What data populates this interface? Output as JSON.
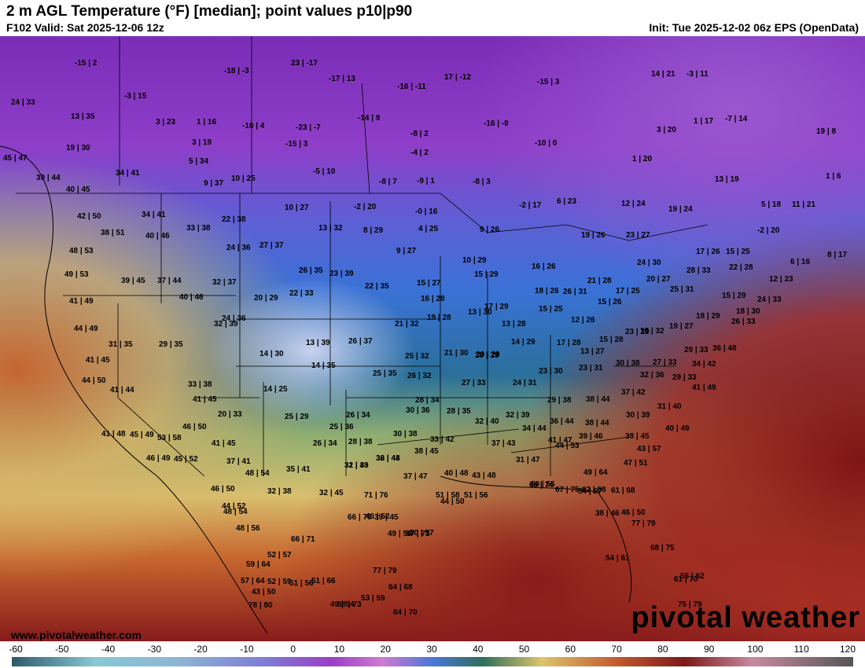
{
  "header": {
    "title": "2 m AGL Temperature (°F) [median]; point values p10|p90",
    "valid": "F102 Valid: Sat 2025-12-06 12z",
    "init": "Init: Tue 2025-12-02 06z EPS (OpenData)"
  },
  "branding": {
    "logo": "pivotal weather",
    "site": "www.pivotalweather.com"
  },
  "colorbar": {
    "ticks": [
      "-60",
      "-50",
      "-40",
      "-30",
      "-20",
      "-10",
      "0",
      "10",
      "20",
      "30",
      "40",
      "50",
      "60",
      "70",
      "80",
      "90",
      "100",
      "110",
      "120"
    ]
  },
  "colors": {
    "frigid": "#8a2fc1",
    "cold": "#3f6fd8",
    "cool": "#2e7d6a",
    "mild": "#d9c46a",
    "warm": "#c9582e",
    "hot": "#8f1f1f"
  },
  "points": [
    "-15 | 2",
    "-18 | -3",
    "23 | -17",
    "-17 | 13",
    "-16 | -11",
    "17 | -12",
    "-15 | 3",
    "14 | 21",
    "-3 | 11",
    "24 | 33",
    "-3 | 15",
    "13 | 35",
    "3 | 23",
    "1 | 16",
    "-10 | 4",
    "-23 | -7",
    "-14 | 9",
    "-8 | 2",
    "-16 | -9",
    "3 | 20",
    "1 | 17",
    "-7 | 14",
    "19 | 8",
    "19 | 30",
    "3 | 19",
    "-15 | 3",
    "-4 | 2",
    "-10 | 0",
    "45 | 47",
    "5 | 34",
    "-5 | 10",
    "1 | 20",
    "34 | 41",
    "39 | 44",
    "9 | 37",
    "10 | 25",
    "-8 | 7",
    "-9 | 1",
    "-8 | 3",
    "13 | 19",
    "1 | 6",
    "40 | 45",
    "6 | 23",
    "12 | 24",
    "19 | 24",
    "5 | 18",
    "11 | 21",
    "42 | 50",
    "34 | 41",
    "10 | 27",
    "-2 | 20",
    "-0 | 16",
    "-2 | 17",
    "22 | 38",
    "33 | 38",
    "13 | 32",
    "8 | 29",
    "4 | 25",
    "9 | 26",
    "19 | 26",
    "23 | 27",
    "-2 | 20",
    "38 | 51",
    "40 | 46",
    "24 | 36",
    "27 | 37",
    "9 | 27",
    "17 | 26",
    "15 | 25",
    "8 | 17",
    "48 | 53",
    "10 | 29",
    "16 | 26",
    "24 | 30",
    "6 | 16",
    "26 | 35",
    "23 | 39",
    "15 | 29",
    "22 | 28",
    "49 | 53",
    "39 | 45",
    "37 | 44",
    "32 | 37",
    "22 | 33",
    "20 | 29",
    "22 | 35",
    "15 | 27",
    "18 | 26",
    "26 | 31",
    "21 | 28",
    "17 | 25",
    "20 | 27",
    "25 | 31",
    "28 | 33",
    "12 | 23",
    "41 | 49",
    "40 | 46",
    "16 | 28",
    "17 | 29",
    "15 | 25",
    "15 | 26",
    "15 | 29",
    "24 | 33",
    "32 | 39",
    "21 | 32",
    "19 | 28",
    "13 | 30",
    "13 | 28",
    "12 | 26",
    "23 | 29",
    "19 | 27",
    "18 | 29",
    "18 | 30",
    "44 | 49",
    "24 | 36",
    "31 | 35",
    "29 | 35",
    "13 | 39",
    "26 | 37",
    "14 | 29",
    "17 | 28",
    "15 | 28",
    "18 | 32",
    "26 | 33",
    "14 | 30",
    "25 | 32",
    "21 | 30",
    "20 | 29",
    "13 | 27",
    "29 | 33",
    "36 | 48",
    "41 | 45",
    "14 | 35",
    "25 | 35",
    "26 | 32",
    "20 | 29",
    "23 | 30",
    "23 | 31",
    "30 | 38",
    "27 | 33",
    "34 | 42",
    "44 | 50",
    "33 | 38",
    "27 | 33",
    "24 | 31",
    "32 | 36",
    "29 | 33",
    "41 | 49",
    "41 | 44",
    "14 | 25",
    "28 | 34",
    "29 | 38",
    "37 | 42",
    "38 | 44",
    "41 | 45",
    "20 | 33",
    "26 | 34",
    "30 | 36",
    "28 | 35",
    "32 | 39",
    "30 | 39",
    "31 | 40",
    "38 | 44",
    "41 | 48",
    "25 | 29",
    "25 | 36",
    "32 | 40",
    "34 | 44",
    "36 | 44",
    "40 | 49",
    "45 | 49",
    "53 | 58",
    "46 | 50",
    "26 | 34",
    "28 | 38",
    "30 | 38",
    "33 | 42",
    "39 | 46",
    "38 | 45",
    "41 | 45",
    "37 | 43",
    "41 | 47",
    "43 | 57",
    "46 | 49",
    "45 | 52",
    "37 | 41",
    "32 | 43",
    "36 | 44",
    "38 | 45",
    "31 | 47",
    "44 | 53",
    "47 | 51",
    "48 | 54",
    "35 | 41",
    "31 | 39",
    "32 | 43",
    "37 | 47",
    "40 | 48",
    "43 | 48",
    "49 | 64",
    "46 | 50",
    "32 | 38",
    "32 | 45",
    "50 | 55",
    "54 | 67",
    "61 | 68",
    "48 | 54",
    "46 | 52",
    "46 | 50",
    "51 | 56",
    "44 | 50",
    "62 | 68",
    "38 | 46",
    "44 | 52",
    "71 | 76",
    "67 | 75",
    "69 | 74",
    "51 | 58",
    "50 | 57",
    "48 | 56",
    "66 | 71",
    "66 | 70",
    "39 | 45",
    "49 | 56",
    "67 | 73",
    "77 | 79",
    "59 | 64",
    "52 | 59",
    "52 | 57",
    "54 | 61",
    "68 | 75",
    "56 | 62",
    "57 | 64",
    "77 | 79",
    "51 | 66",
    "61 | 70",
    "43 | 50",
    "78 | 80",
    "51 | 56",
    "68 | 73",
    "49 | 54",
    "64 | 70",
    "64 | 68",
    "75 | 79",
    "53 | 59"
  ]
}
